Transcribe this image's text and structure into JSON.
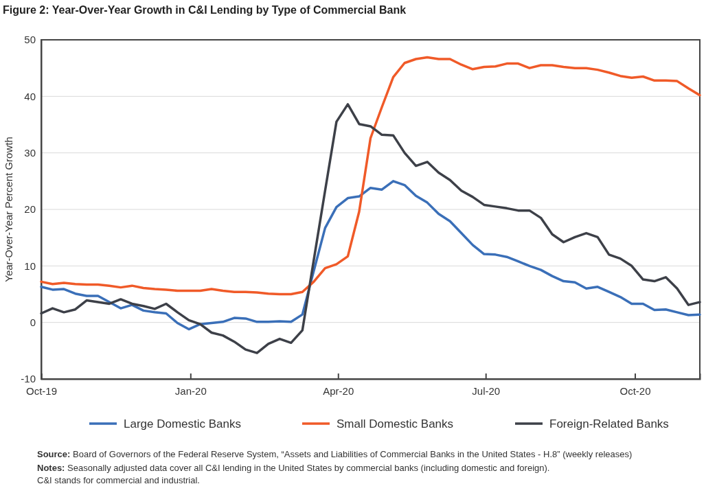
{
  "chart_data": {
    "type": "line",
    "title": "Figure 2: Year-Over-Year Growth in C&I Lending by Type of Commercial Bank",
    "ylabel": "Year-Over-Year Percent Growth",
    "x": [
      "2019-10-01",
      "2019-10-08",
      "2019-10-15",
      "2019-10-22",
      "2019-10-29",
      "2019-11-05",
      "2019-11-12",
      "2019-11-19",
      "2019-11-26",
      "2019-12-03",
      "2019-12-10",
      "2019-12-17",
      "2019-12-24",
      "2019-12-31",
      "2020-01-07",
      "2020-01-14",
      "2020-01-21",
      "2020-01-28",
      "2020-02-04",
      "2020-02-11",
      "2020-02-18",
      "2020-02-25",
      "2020-03-03",
      "2020-03-10",
      "2020-03-17",
      "2020-03-24",
      "2020-03-31",
      "2020-04-07",
      "2020-04-14",
      "2020-04-21",
      "2020-04-28",
      "2020-05-05",
      "2020-05-12",
      "2020-05-19",
      "2020-05-26",
      "2020-06-02",
      "2020-06-09",
      "2020-06-16",
      "2020-06-23",
      "2020-06-30",
      "2020-07-07",
      "2020-07-14",
      "2020-07-21",
      "2020-07-28",
      "2020-08-04",
      "2020-08-11",
      "2020-08-18",
      "2020-08-25",
      "2020-09-01",
      "2020-09-08",
      "2020-09-15",
      "2020-09-22",
      "2020-09-29",
      "2020-10-06",
      "2020-10-13",
      "2020-10-20",
      "2020-10-27",
      "2020-11-03",
      "2020-11-10"
    ],
    "series": [
      {
        "name": "Large Domestic Banks",
        "color": "#3a6fb8",
        "values": [
          6.3,
          5.8,
          5.9,
          5.1,
          4.7,
          4.7,
          3.6,
          2.5,
          3.1,
          2.1,
          1.8,
          1.6,
          -0.1,
          -1.2,
          -0.3,
          -0.1,
          0.1,
          0.8,
          0.7,
          0.1,
          0.1,
          0.2,
          0.1,
          1.4,
          9.1,
          16.7,
          20.4,
          22.0,
          22.3,
          23.8,
          23.5,
          25.0,
          24.3,
          22.4,
          21.2,
          19.2,
          17.9,
          15.8,
          13.7,
          12.1,
          12.0,
          11.6,
          10.8,
          10.0,
          9.3,
          8.2,
          7.3,
          7.1,
          6.0,
          6.3,
          5.4,
          4.5,
          3.3,
          3.3,
          2.2,
          2.3,
          1.8,
          1.3,
          1.4
        ]
      },
      {
        "name": "Small Domestic Banks",
        "color": "#f05a28",
        "values": [
          7.2,
          6.8,
          7.0,
          6.8,
          6.7,
          6.7,
          6.5,
          6.2,
          6.5,
          6.1,
          5.9,
          5.8,
          5.6,
          5.6,
          5.6,
          5.9,
          5.6,
          5.4,
          5.4,
          5.3,
          5.1,
          5.0,
          5.0,
          5.4,
          7.2,
          9.6,
          10.3,
          11.7,
          19.6,
          32.6,
          38.1,
          43.4,
          45.9,
          46.6,
          46.9,
          46.6,
          46.6,
          45.6,
          44.8,
          45.2,
          45.3,
          45.8,
          45.8,
          45.0,
          45.5,
          45.5,
          45.2,
          45.0,
          45.0,
          44.7,
          44.2,
          43.6,
          43.3,
          43.5,
          42.8,
          42.8,
          42.7,
          41.4,
          40.2
        ]
      },
      {
        "name": "Foreign-Related Banks",
        "color": "#3d4048",
        "values": [
          1.6,
          2.5,
          1.8,
          2.3,
          3.9,
          3.6,
          3.3,
          4.1,
          3.3,
          2.9,
          2.4,
          3.3,
          1.8,
          0.4,
          -0.3,
          -1.8,
          -2.3,
          -3.4,
          -4.8,
          -5.4,
          -3.8,
          -2.9,
          -3.6,
          -1.4,
          11.0,
          23.3,
          35.5,
          38.6,
          35.1,
          34.7,
          33.2,
          33.1,
          30.0,
          27.7,
          28.4,
          26.5,
          25.2,
          23.3,
          22.2,
          20.8,
          20.5,
          20.2,
          19.8,
          19.8,
          18.5,
          15.6,
          14.2,
          15.1,
          15.8,
          15.1,
          12.0,
          11.3,
          10.0,
          7.6,
          7.3,
          8.0,
          6.0,
          3.1,
          3.6
        ]
      }
    ],
    "xlim": [
      "2019-10-01",
      "2020-11-10"
    ],
    "xticks": [
      {
        "value": "2019-10-01",
        "label": "Oct-19"
      },
      {
        "value": "2020-01-01",
        "label": "Jan-20"
      },
      {
        "value": "2020-04-01",
        "label": "Apr-20"
      },
      {
        "value": "2020-07-01",
        "label": "Jul-20"
      },
      {
        "value": "2020-10-01",
        "label": "Oct-20"
      }
    ],
    "ylim": [
      -10,
      50
    ],
    "yticks": [
      -10,
      0,
      10,
      20,
      30,
      40,
      50
    ],
    "grid": "y",
    "legend": "bottom",
    "line_style": "solid",
    "annotations": [
      "Source: Board of Governors of the Federal Reserve System, “Assets and Liabilities of Commercial Banks in the United States - H.8” (weekly releases)",
      "Notes: Seasonally adjusted data cover all C&I lending in the United States by commercial banks (including domestic and foreign).\nC&I stands for commercial and industrial."
    ]
  }
}
